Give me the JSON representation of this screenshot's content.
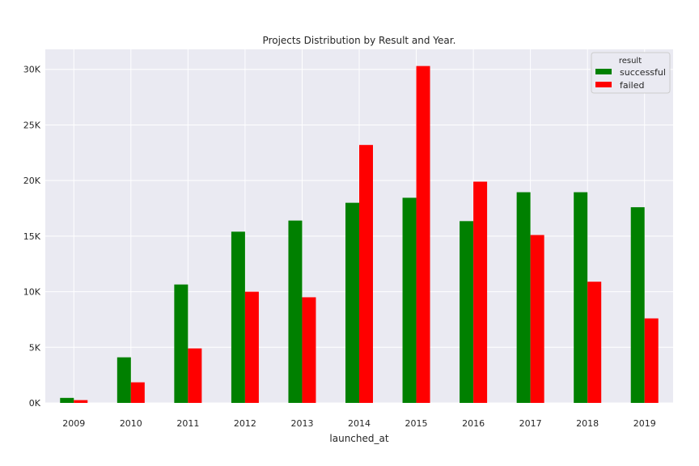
{
  "chart_data": {
    "type": "bar",
    "title": "Projects Distribution by Result and Year.",
    "xlabel": "launched_at",
    "ylabel": "",
    "categories": [
      "2009",
      "2010",
      "2011",
      "2012",
      "2013",
      "2014",
      "2015",
      "2016",
      "2017",
      "2018",
      "2019"
    ],
    "series": [
      {
        "name": "successful",
        "color": "#008000",
        "values": [
          450,
          4100,
          10650,
          15400,
          16400,
          18000,
          18450,
          16350,
          18950,
          18950,
          17600
        ]
      },
      {
        "name": "failed",
        "color": "#ff0000",
        "values": [
          250,
          1850,
          4900,
          10000,
          9500,
          23200,
          30300,
          19900,
          15100,
          10900,
          7600
        ]
      }
    ],
    "ylim": [
      0,
      31800
    ],
    "yticks": [
      0,
      5000,
      10000,
      15000,
      20000,
      25000,
      30000
    ],
    "ytick_labels": [
      "0K",
      "5K",
      "10K",
      "15K",
      "20K",
      "25K",
      "30K"
    ],
    "legend": {
      "title": "result",
      "placement": "top-right"
    },
    "grid": true,
    "background": "#eaeaf2"
  }
}
